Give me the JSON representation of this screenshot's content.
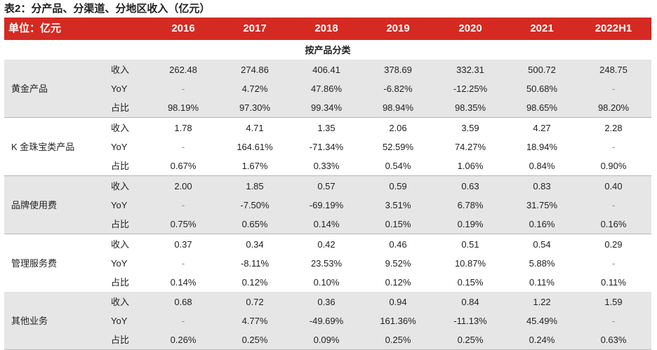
{
  "title": "表2：分产品、分渠道、分地区收入（亿元）",
  "header": {
    "unit": "单位：亿元",
    "years": [
      "2016",
      "2017",
      "2018",
      "2019",
      "2020",
      "2021",
      "2022H1"
    ]
  },
  "section_title": "按产品分类",
  "metric_labels": [
    "收入",
    "YoY",
    "占比"
  ],
  "groups": [
    {
      "name": "黄金产品",
      "rows": [
        [
          "262.48",
          "274.86",
          "406.41",
          "378.69",
          "332.31",
          "500.72",
          "248.75"
        ],
        [
          "-",
          "4.72%",
          "47.86%",
          "-6.82%",
          "-12.25%",
          "50.68%",
          "-"
        ],
        [
          "98.19%",
          "97.30%",
          "99.34%",
          "98.94%",
          "98.35%",
          "98.65%",
          "98.20%"
        ]
      ]
    },
    {
      "name": "K 金珠宝类产品",
      "rows": [
        [
          "1.78",
          "4.71",
          "1.35",
          "2.06",
          "3.59",
          "4.27",
          "2.28"
        ],
        [
          "-",
          "164.61%",
          "-71.34%",
          "52.59%",
          "74.27%",
          "18.94%",
          "-"
        ],
        [
          "0.67%",
          "1.67%",
          "0.33%",
          "0.54%",
          "1.06%",
          "0.84%",
          "0.90%"
        ]
      ]
    },
    {
      "name": "品牌使用费",
      "rows": [
        [
          "2.00",
          "1.85",
          "0.57",
          "0.59",
          "0.63",
          "0.83",
          "0.40"
        ],
        [
          "-",
          "-7.50%",
          "-69.19%",
          "3.51%",
          "6.78%",
          "31.75%",
          "-"
        ],
        [
          "0.75%",
          "0.65%",
          "0.14%",
          "0.15%",
          "0.19%",
          "0.16%",
          "0.16%"
        ]
      ]
    },
    {
      "name": "管理服务费",
      "rows": [
        [
          "0.37",
          "0.34",
          "0.42",
          "0.46",
          "0.51",
          "0.54",
          "0.29"
        ],
        [
          "-",
          "-8.11%",
          "23.53%",
          "9.52%",
          "10.87%",
          "5.88%",
          "-"
        ],
        [
          "0.14%",
          "0.12%",
          "0.10%",
          "0.12%",
          "0.15%",
          "0.11%",
          "0.11%"
        ]
      ]
    },
    {
      "name": "其他业务",
      "rows": [
        [
          "0.68",
          "0.72",
          "0.36",
          "0.94",
          "0.84",
          "1.22",
          "1.59"
        ],
        [
          "-",
          "4.77%",
          "-49.69%",
          "161.36%",
          "-11.13%",
          "45.49%",
          "-"
        ],
        [
          "0.26%",
          "0.25%",
          "0.09%",
          "0.25%",
          "0.25%",
          "0.24%",
          "0.63%"
        ]
      ]
    }
  ]
}
